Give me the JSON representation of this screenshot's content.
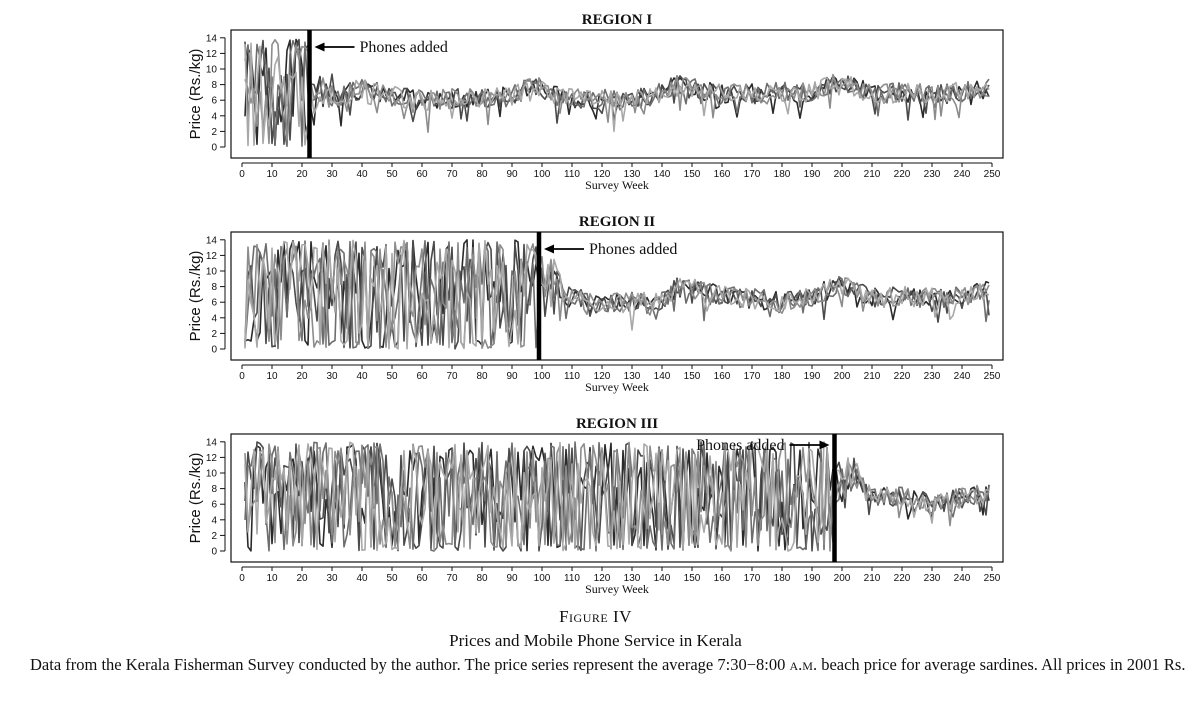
{
  "figure": {
    "label": "Figure IV",
    "title": "Prices and Mobile Phone Service in Kerala",
    "note_before": "Data from the Kerala Fisherman Survey conducted by the author. The price series represent the average 7:30−8:00",
    "note_time_unit": "a.m.",
    "note_after": "beach price for average sardines. All prices in 2001 Rs."
  },
  "chart_data": [
    {
      "type": "line",
      "title": "REGION I",
      "xlabel": "Survey Week",
      "ylabel": "Price (Rs./kg)",
      "xlim": [
        0,
        250
      ],
      "ylim": [
        0,
        15
      ],
      "xticks": [
        0,
        10,
        20,
        30,
        40,
        50,
        60,
        70,
        80,
        90,
        100,
        110,
        120,
        130,
        140,
        150,
        160,
        170,
        180,
        190,
        200,
        210,
        220,
        230,
        240,
        250
      ],
      "yticks": [
        0,
        2,
        4,
        6,
        8,
        10,
        12,
        14
      ],
      "grid": false,
      "legend": "none",
      "event": {
        "week": 22.5,
        "label": "Phones added",
        "label_side": "right"
      },
      "series_count": 5,
      "pre_event_range": [
        0,
        14
      ],
      "post_event_mean": [
        {
          "x": 25,
          "y": 5.5
        },
        {
          "x": 40,
          "y": 7.5
        },
        {
          "x": 50,
          "y": 6.5
        },
        {
          "x": 60,
          "y": 6.0
        },
        {
          "x": 70,
          "y": 6.2
        },
        {
          "x": 80,
          "y": 6.3
        },
        {
          "x": 90,
          "y": 6.5
        },
        {
          "x": 98,
          "y": 8.0
        },
        {
          "x": 105,
          "y": 6.5
        },
        {
          "x": 115,
          "y": 6.2
        },
        {
          "x": 125,
          "y": 6.0
        },
        {
          "x": 135,
          "y": 6.3
        },
        {
          "x": 145,
          "y": 8.0
        },
        {
          "x": 150,
          "y": 7.5
        },
        {
          "x": 160,
          "y": 6.8
        },
        {
          "x": 170,
          "y": 6.8
        },
        {
          "x": 180,
          "y": 7.0
        },
        {
          "x": 190,
          "y": 7.0
        },
        {
          "x": 200,
          "y": 8.5
        },
        {
          "x": 210,
          "y": 6.8
        },
        {
          "x": 220,
          "y": 7.0
        },
        {
          "x": 230,
          "y": 6.8
        },
        {
          "x": 240,
          "y": 7.0
        },
        {
          "x": 249,
          "y": 7.6
        }
      ]
    },
    {
      "type": "line",
      "title": "REGION II",
      "xlabel": "Survey Week",
      "ylabel": "Price (Rs./kg)",
      "xlim": [
        0,
        250
      ],
      "ylim": [
        0,
        15
      ],
      "xticks": [
        0,
        10,
        20,
        30,
        40,
        50,
        60,
        70,
        80,
        90,
        100,
        110,
        120,
        130,
        140,
        150,
        160,
        170,
        180,
        190,
        200,
        210,
        220,
        230,
        240,
        250
      ],
      "yticks": [
        0,
        2,
        4,
        6,
        8,
        10,
        12,
        14
      ],
      "grid": false,
      "legend": "none",
      "event": {
        "week": 99,
        "label": "Phones added",
        "label_side": "right"
      },
      "series_count": 5,
      "pre_event_range": [
        0,
        14
      ],
      "post_event_mean": [
        {
          "x": 100,
          "y": 8.0
        },
        {
          "x": 110,
          "y": 6.5
        },
        {
          "x": 120,
          "y": 5.8
        },
        {
          "x": 130,
          "y": 6.0
        },
        {
          "x": 140,
          "y": 6.3
        },
        {
          "x": 145,
          "y": 8.0
        },
        {
          "x": 150,
          "y": 7.8
        },
        {
          "x": 160,
          "y": 6.8
        },
        {
          "x": 170,
          "y": 6.5
        },
        {
          "x": 180,
          "y": 6.0
        },
        {
          "x": 190,
          "y": 6.8
        },
        {
          "x": 200,
          "y": 8.3
        },
        {
          "x": 210,
          "y": 6.5
        },
        {
          "x": 220,
          "y": 6.8
        },
        {
          "x": 230,
          "y": 6.5
        },
        {
          "x": 240,
          "y": 6.8
        },
        {
          "x": 249,
          "y": 7.5
        }
      ]
    },
    {
      "type": "line",
      "title": "REGION III",
      "xlabel": "Survey Week",
      "ylabel": "Price (Rs./kg)",
      "xlim": [
        0,
        250
      ],
      "ylim": [
        0,
        15
      ],
      "xticks": [
        0,
        10,
        20,
        30,
        40,
        50,
        60,
        70,
        80,
        90,
        100,
        110,
        120,
        130,
        140,
        150,
        160,
        170,
        180,
        190,
        200,
        210,
        220,
        230,
        240,
        250
      ],
      "yticks": [
        0,
        2,
        4,
        6,
        8,
        10,
        12,
        14
      ],
      "grid": false,
      "legend": "none",
      "event": {
        "week": 197.5,
        "label": "Phones added",
        "label_side": "left"
      },
      "series_count": 5,
      "pre_event_range": [
        0,
        14
      ],
      "post_event_mean": [
        {
          "x": 198,
          "y": 8.0
        },
        {
          "x": 205,
          "y": 9.0
        },
        {
          "x": 210,
          "y": 7.0
        },
        {
          "x": 220,
          "y": 7.0
        },
        {
          "x": 230,
          "y": 6.0
        },
        {
          "x": 240,
          "y": 6.8
        },
        {
          "x": 249,
          "y": 7.5
        }
      ]
    }
  ]
}
